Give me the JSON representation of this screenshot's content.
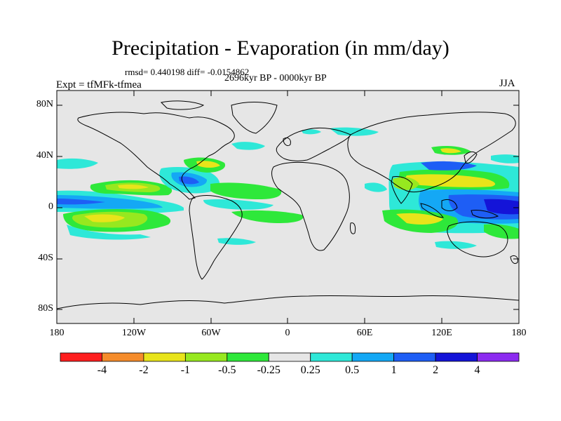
{
  "title": "Precipitation - Evaporation (in mm/day)",
  "stats_text": "rmsd= 0.440198 diff= -0.0154862",
  "period": "2696kyr BP - 0000kyr BP",
  "experiment": "Expt = tfMFk-tfmea",
  "season": "JJA",
  "lat_labels": [
    "80N",
    "40N",
    "0",
    "40S",
    "80S"
  ],
  "lon_labels": [
    "180",
    "120W",
    "60W",
    "0",
    "60E",
    "120E",
    "180"
  ],
  "colorbar": {
    "colors": [
      "#ff1e1e",
      "#f58c2b",
      "#e8e41a",
      "#97e81f",
      "#2ee83a",
      "#e6e6e6",
      "#2ee8d8",
      "#14a8f5",
      "#1e5ef5",
      "#1414d8",
      "#8c2bf0"
    ],
    "labels": [
      "-4",
      "-2",
      "-1",
      "-0.5",
      "-0.25",
      "0.25",
      "0.5",
      "1",
      "2",
      "4"
    ]
  },
  "legend_colors": {
    "land_background": "#e6e6e6",
    "coastline": "#000000"
  }
}
